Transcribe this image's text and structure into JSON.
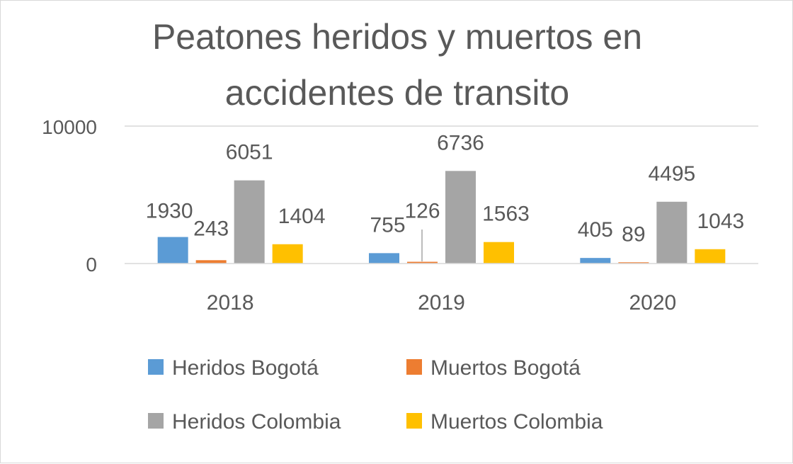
{
  "chart_data": {
    "type": "bar",
    "title_lines": [
      "Peatones heridos y muertos en",
      "accidentes de transito"
    ],
    "categories": [
      "2018",
      "2019",
      "2020"
    ],
    "series": [
      {
        "name": "Heridos Bogotá",
        "color": "#5b9bd5",
        "values": [
          1930,
          755,
          405
        ]
      },
      {
        "name": "Muertos Bogotá",
        "color": "#ed7d31",
        "values": [
          243,
          126,
          89
        ]
      },
      {
        "name": "Heridos Colombia",
        "color": "#a5a5a5",
        "values": [
          6051,
          6736,
          4495
        ]
      },
      {
        "name": "Muertos Colombia",
        "color": "#ffc000",
        "values": [
          1404,
          1563,
          1043
        ]
      }
    ],
    "yticks": [
      "0",
      "10000"
    ],
    "ylim": [
      0,
      10000
    ],
    "grid": true,
    "legend_position": "bottom"
  }
}
